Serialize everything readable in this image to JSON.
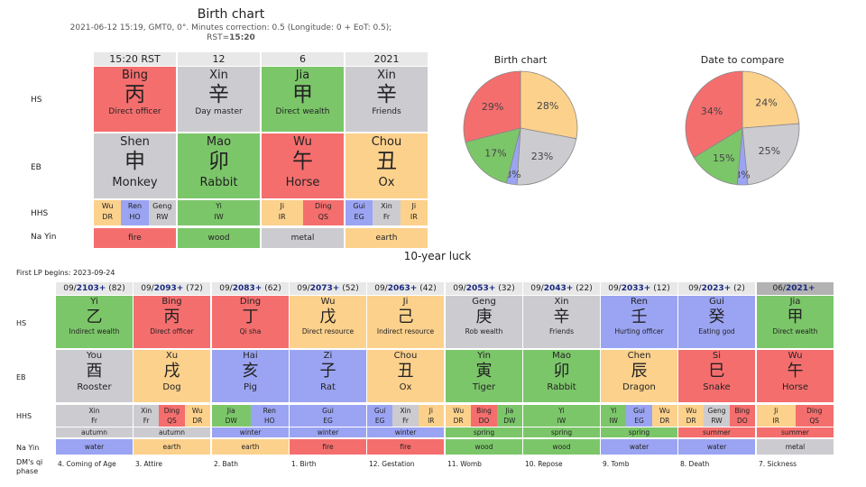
{
  "header": {
    "title": "Birth chart",
    "subtitle_line1": "2021-06-12 15:19, GMT0, 0°. Minutes correction: 0.5 (Longitude: 0 + EoT: 0.5);",
    "subtitle_rst_label": "RST=",
    "subtitle_rst_value": "15:20"
  },
  "labels": {
    "hs": "HS",
    "eb": "EB",
    "hhs": "HHS",
    "na_yin": "Na Yin",
    "dm_phase": "DM's qi phase"
  },
  "pillars": [
    {
      "header": "15:20 RST",
      "hs_py": "Bing",
      "hs_hz": "丙",
      "hs_desc": "Direct officer",
      "hs_color": "red",
      "eb_py": "Shen",
      "eb_hz": "申",
      "eb_animal": "Monkey",
      "eb_color": "gray",
      "hhs": [
        {
          "a": "Wu",
          "b": "DR",
          "c": "orange"
        },
        {
          "a": "Ren",
          "b": "HO",
          "c": "blue"
        },
        {
          "a": "Geng",
          "b": "RW",
          "c": "gray"
        }
      ],
      "nayin": "fire",
      "nayin_color": "red"
    },
    {
      "header": "12",
      "hs_py": "Xin",
      "hs_hz": "辛",
      "hs_desc": "Day master",
      "hs_color": "gray",
      "eb_py": "Mao",
      "eb_hz": "卯",
      "eb_animal": "Rabbit",
      "eb_color": "green",
      "hhs": [
        {
          "a": "Yi",
          "b": "IW",
          "c": "green"
        }
      ],
      "nayin": "wood",
      "nayin_color": "green"
    },
    {
      "header": "6",
      "hs_py": "Jia",
      "hs_hz": "甲",
      "hs_desc": "Direct wealth",
      "hs_color": "green",
      "eb_py": "Wu",
      "eb_hz": "午",
      "eb_animal": "Horse",
      "eb_color": "red",
      "hhs": [
        {
          "a": "Ji",
          "b": "IR",
          "c": "orange"
        },
        {
          "a": "Ding",
          "b": "QS",
          "c": "red"
        }
      ],
      "nayin": "metal",
      "nayin_color": "gray"
    },
    {
      "header": "2021",
      "hs_py": "Xin",
      "hs_hz": "辛",
      "hs_desc": "Friends",
      "hs_color": "gray",
      "eb_py": "Chou",
      "eb_hz": "丑",
      "eb_animal": "Ox",
      "eb_color": "orange",
      "hhs": [
        {
          "a": "Gui",
          "b": "EG",
          "c": "blue"
        },
        {
          "a": "Xin",
          "b": "Fr",
          "c": "gray"
        },
        {
          "a": "Ji",
          "b": "IR",
          "c": "orange"
        }
      ],
      "nayin": "earth",
      "nayin_color": "orange"
    }
  ],
  "colors": {
    "red": "#f56e6e",
    "gray": "#cccbd0",
    "green": "#7cc66a",
    "orange": "#fcd18c",
    "blue": "#9ba4f2"
  },
  "pies": [
    {
      "title": "Birth chart",
      "slices": [
        {
          "label": "28%",
          "value": 28,
          "color": "orange"
        },
        {
          "label": "23%",
          "value": 23,
          "color": "gray"
        },
        {
          "label": "3%",
          "value": 3,
          "color": "blue"
        },
        {
          "label": "17%",
          "value": 17,
          "color": "green"
        },
        {
          "label": "29%",
          "value": 29,
          "color": "red"
        }
      ]
    },
    {
      "title": "Date to compare",
      "slices": [
        {
          "label": "24%",
          "value": 24,
          "color": "orange"
        },
        {
          "label": "25%",
          "value": 25,
          "color": "gray"
        },
        {
          "label": "3%",
          "value": 3,
          "color": "blue"
        },
        {
          "label": "15%",
          "value": 15,
          "color": "green"
        },
        {
          "label": "34%",
          "value": 34,
          "color": "red"
        }
      ]
    }
  ],
  "luck": {
    "title": "10-year luck",
    "first_lp": "First LP begins: 2023-09-24",
    "columns": [
      {
        "date": "09/",
        "year": "2103+",
        "age": "(82)",
        "hs_py": "Yi",
        "hs_hz": "乙",
        "hs_desc": "Indirect wealth",
        "hs_color": "green",
        "eb_py": "You",
        "eb_hz": "酉",
        "eb_animal": "Rooster",
        "eb_color": "gray",
        "hhs": [
          {
            "a": "Xin",
            "b": "Fr",
            "c": "gray"
          }
        ],
        "season": "autumn",
        "season_color": "gray",
        "nayin": "water",
        "nayin_color": "blue",
        "phase": "4. Coming of Age"
      },
      {
        "date": "09/",
        "year": "2093+",
        "age": "(72)",
        "hs_py": "Bing",
        "hs_hz": "丙",
        "hs_desc": "Direct officer",
        "hs_color": "red",
        "eb_py": "Xu",
        "eb_hz": "戌",
        "eb_animal": "Dog",
        "eb_color": "orange",
        "hhs": [
          {
            "a": "Xin",
            "b": "Fr",
            "c": "gray"
          },
          {
            "a": "Ding",
            "b": "QS",
            "c": "red"
          },
          {
            "a": "Wu",
            "b": "DR",
            "c": "orange"
          }
        ],
        "season": "autumn",
        "season_color": "gray",
        "nayin": "earth",
        "nayin_color": "orange",
        "phase": "3. Attire"
      },
      {
        "date": "09/",
        "year": "2083+",
        "age": "(62)",
        "hs_py": "Ding",
        "hs_hz": "丁",
        "hs_desc": "Qi sha",
        "hs_color": "red",
        "eb_py": "Hai",
        "eb_hz": "亥",
        "eb_animal": "Pig",
        "eb_color": "blue",
        "hhs": [
          {
            "a": "Jia",
            "b": "DW",
            "c": "green"
          },
          {
            "a": "Ren",
            "b": "HO",
            "c": "blue"
          }
        ],
        "season": "winter",
        "season_color": "blue",
        "nayin": "earth",
        "nayin_color": "orange",
        "phase": "2. Bath"
      },
      {
        "date": "09/",
        "year": "2073+",
        "age": "(52)",
        "hs_py": "Wu",
        "hs_hz": "戊",
        "hs_desc": "Direct resource",
        "hs_color": "orange",
        "eb_py": "Zi",
        "eb_hz": "子",
        "eb_animal": "Rat",
        "eb_color": "blue",
        "hhs": [
          {
            "a": "Gui",
            "b": "EG",
            "c": "blue"
          }
        ],
        "season": "winter",
        "season_color": "blue",
        "nayin": "fire",
        "nayin_color": "red",
        "phase": "1. Birth"
      },
      {
        "date": "09/",
        "year": "2063+",
        "age": "(42)",
        "hs_py": "Ji",
        "hs_hz": "己",
        "hs_desc": "Indirect resource",
        "hs_color": "orange",
        "eb_py": "Chou",
        "eb_hz": "丑",
        "eb_animal": "Ox",
        "eb_color": "orange",
        "hhs": [
          {
            "a": "Gui",
            "b": "EG",
            "c": "blue"
          },
          {
            "a": "Xin",
            "b": "Fr",
            "c": "gray"
          },
          {
            "a": "Ji",
            "b": "IR",
            "c": "orange"
          }
        ],
        "season": "winter",
        "season_color": "blue",
        "nayin": "fire",
        "nayin_color": "red",
        "phase": "12. Gestation"
      },
      {
        "date": "09/",
        "year": "2053+",
        "age": "(32)",
        "hs_py": "Geng",
        "hs_hz": "庚",
        "hs_desc": "Rob wealth",
        "hs_color": "gray",
        "eb_py": "Yin",
        "eb_hz": "寅",
        "eb_animal": "Tiger",
        "eb_color": "green",
        "hhs": [
          {
            "a": "Wu",
            "b": "DR",
            "c": "orange"
          },
          {
            "a": "Bing",
            "b": "DO",
            "c": "red"
          },
          {
            "a": "Jia",
            "b": "DW",
            "c": "green"
          }
        ],
        "season": "spring",
        "season_color": "green",
        "nayin": "wood",
        "nayin_color": "green",
        "phase": "11. Womb"
      },
      {
        "date": "09/",
        "year": "2043+",
        "age": "(22)",
        "hs_py": "Xin",
        "hs_hz": "辛",
        "hs_desc": "Friends",
        "hs_color": "gray",
        "eb_py": "Mao",
        "eb_hz": "卯",
        "eb_animal": "Rabbit",
        "eb_color": "green",
        "hhs": [
          {
            "a": "Yi",
            "b": "IW",
            "c": "green"
          }
        ],
        "season": "spring",
        "season_color": "green",
        "nayin": "wood",
        "nayin_color": "green",
        "phase": "10. Repose"
      },
      {
        "date": "09/",
        "year": "2033+",
        "age": "(12)",
        "hs_py": "Ren",
        "hs_hz": "壬",
        "hs_desc": "Hurting officer",
        "hs_color": "blue",
        "eb_py": "Chen",
        "eb_hz": "辰",
        "eb_animal": "Dragon",
        "eb_color": "orange",
        "hhs": [
          {
            "a": "Yi",
            "b": "IW",
            "c": "green"
          },
          {
            "a": "Gui",
            "b": "EG",
            "c": "blue"
          },
          {
            "a": "Wu",
            "b": "DR",
            "c": "orange"
          }
        ],
        "season": "spring",
        "season_color": "green",
        "nayin": "water",
        "nayin_color": "blue",
        "phase": "9. Tomb"
      },
      {
        "date": "09/",
        "year": "2023+",
        "age": "(2)",
        "hs_py": "Gui",
        "hs_hz": "癸",
        "hs_desc": "Eating god",
        "hs_color": "blue",
        "eb_py": "Si",
        "eb_hz": "巳",
        "eb_animal": "Snake",
        "eb_color": "red",
        "hhs": [
          {
            "a": "Wu",
            "b": "DR",
            "c": "orange"
          },
          {
            "a": "Geng",
            "b": "RW",
            "c": "gray"
          },
          {
            "a": "Bing",
            "b": "DO",
            "c": "red"
          }
        ],
        "season": "summer",
        "season_color": "red",
        "nayin": "water",
        "nayin_color": "blue",
        "phase": "8. Death"
      },
      {
        "date": "06/",
        "year": "2021+",
        "age": "",
        "hs_py": "Jia",
        "hs_hz": "甲",
        "hs_desc": "Direct wealth",
        "hs_color": "green",
        "eb_py": "Wu",
        "eb_hz": "午",
        "eb_animal": "Horse",
        "eb_color": "red",
        "hhs": [
          {
            "a": "Ji",
            "b": "IR",
            "c": "orange"
          },
          {
            "a": "Ding",
            "b": "QS",
            "c": "red"
          }
        ],
        "season": "summer",
        "season_color": "red",
        "nayin": "metal",
        "nayin_color": "gray",
        "phase": "7. Sickness",
        "current": true
      }
    ]
  }
}
